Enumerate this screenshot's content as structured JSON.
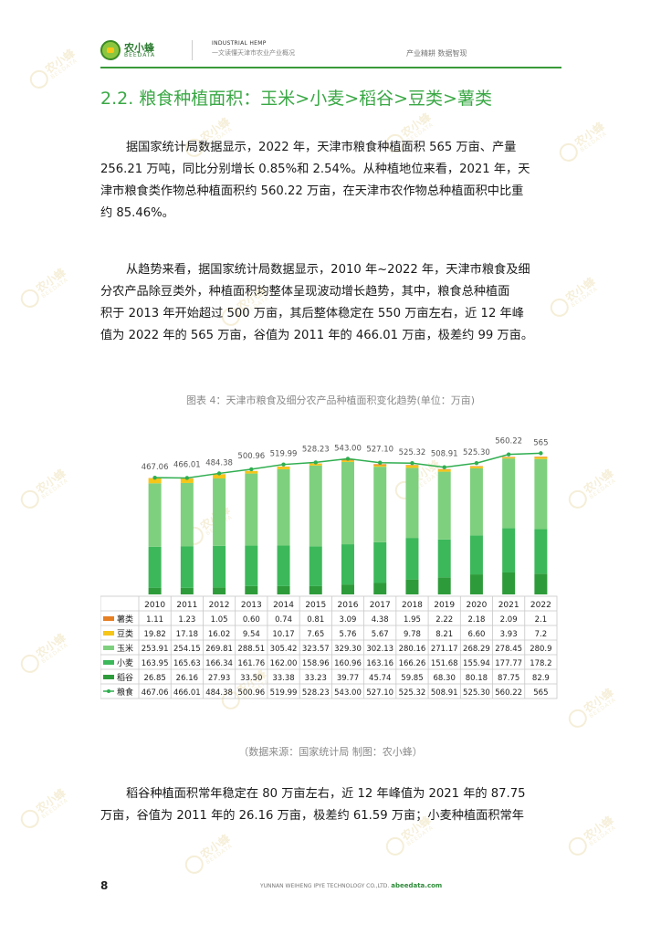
{
  "header": {
    "logo_cn": "农小蜂",
    "logo_en": "BEEDATA",
    "en_title": "INDUSTRIAL HEMP",
    "subtitle": "一文读懂天津市农业产业概况",
    "right": "产业精耕  数据智现"
  },
  "section_title": "2.2. 粮食种植面积：玉米>小麦>稻谷>豆类>薯类",
  "para1": [
    "据国家统计局数据显示，2022 年，天津市粮食种植面积 565 万亩、产量",
    "256.21 万吨，同比分别增长 0.85%和 2.54%。从种植地位来看，2021 年，天",
    "津市粮食类作物总种植面积约 560.22 万亩，在天津市农作物总种植面积中比重",
    "约 85.46%。"
  ],
  "para2": [
    "从趋势来看，据国家统计局数据显示，2010 年~2022 年，天津市粮食及细",
    "分农产品除豆类外，种植面积均整体呈现波动增长趋势，其中，粮食总种植面",
    "积于 2013 年开始超过 500 万亩，其后整体稳定在 550 万亩左右，近 12 年峰",
    "值为 2022 年的 565 万亩，谷值为 2011 年的 466.01 万亩，极差约 99 万亩。"
  ],
  "figure_title": "图表 4：天津市粮食及细分农产品种植面积变化趋势(单位：万亩)",
  "source": "（数据来源：国家统计局    制图：农小蜂）",
  "para3": [
    "稻谷种植面积常年稳定在 80 万亩左右，近 12 年峰值为 2021 年的 87.75",
    "万亩，谷值为 2011 年的 26.16 万亩，极差约 61.59 万亩；小麦种植面积常年"
  ],
  "footer": {
    "page": "8",
    "company": "YUNNAN WEIHENG IPYE TECHNOLOGY CO.,LTD.",
    "site": "abeedata.com"
  },
  "watermark": {
    "cn": "农小蜂",
    "en": "BEEDATA"
  },
  "colors": {
    "accent": "#3aa845",
    "shu": "#e67e22",
    "dou": "#f5c518",
    "yumi": "#7ed07e",
    "xiaomai": "#3cb85a",
    "dao": "#2e9b3a",
    "liangshi_line": "#2fae4f"
  },
  "chart_data": {
    "type": "bar",
    "stacked": true,
    "categories": [
      "2010",
      "2011",
      "2012",
      "2013",
      "2014",
      "2015",
      "2016",
      "2017",
      "2018",
      "2019",
      "2020",
      "2021",
      "2022"
    ],
    "series": [
      {
        "name": "薯类",
        "type": "bar",
        "values": [
          "1.11",
          "1.23",
          "1.05",
          "0.60",
          "0.74",
          "0.81",
          "3.09",
          "4.38",
          "1.95",
          "2.22",
          "2.18",
          "2.09",
          "2.1"
        ]
      },
      {
        "name": "豆类",
        "type": "bar",
        "values": [
          "19.82",
          "17.18",
          "16.02",
          "9.54",
          "10.17",
          "7.65",
          "5.76",
          "5.67",
          "9.78",
          "8.21",
          "6.60",
          "3.93",
          "7.2"
        ]
      },
      {
        "name": "玉米",
        "type": "bar",
        "values": [
          "253.91",
          "254.15",
          "269.81",
          "288.51",
          "305.42",
          "323.57",
          "329.30",
          "302.13",
          "280.16",
          "271.17",
          "268.29",
          "278.45",
          "280.9"
        ]
      },
      {
        "name": "小麦",
        "type": "bar",
        "values": [
          "163.95",
          "165.63",
          "166.34",
          "161.76",
          "162.00",
          "158.96",
          "160.96",
          "163.16",
          "166.26",
          "151.68",
          "155.94",
          "177.77",
          "178.2"
        ]
      },
      {
        "name": "稻谷",
        "type": "bar",
        "values": [
          "26.85",
          "26.16",
          "27.93",
          "33.50",
          "33.38",
          "33.23",
          "39.77",
          "45.74",
          "59.85",
          "68.30",
          "80.18",
          "87.75",
          "82.9"
        ]
      },
      {
        "name": "粮食",
        "type": "line",
        "values": [
          "467.06",
          "466.01",
          "484.38",
          "500.96",
          "519.99",
          "528.23",
          "543.00",
          "527.10",
          "525.32",
          "508.91",
          "525.30",
          "560.22",
          "565"
        ]
      }
    ],
    "data_labels": [
      "467.06",
      "466.01",
      "484.38",
      "500.96",
      "519.99",
      "528.23",
      "543.00",
      "527.10",
      "525.32",
      "508.91",
      "525.30",
      "560.22",
      "565"
    ],
    "ylim": [
      0,
      570
    ],
    "legend": "table-below"
  }
}
